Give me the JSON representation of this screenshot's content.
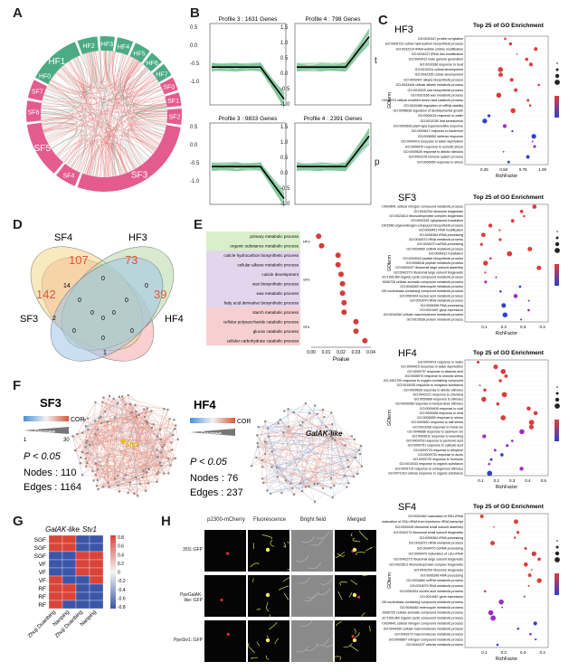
{
  "panels": {
    "A": "A",
    "B": "B",
    "C": "C",
    "D": "D",
    "E": "E",
    "F": "F",
    "G": "G",
    "H": "H"
  },
  "chord": {
    "groups": [
      {
        "label": "HF1",
        "color": "#4cab84",
        "a0": -62,
        "a1": -22
      },
      {
        "label": "HF2",
        "color": "#4cab84",
        "a0": -20,
        "a1": -5
      },
      {
        "label": "HF3",
        "color": "#4cab84",
        "a0": -3,
        "a1": 8
      },
      {
        "label": "HF4",
        "color": "#4cab84",
        "a0": 10,
        "a1": 22
      },
      {
        "label": "HF5",
        "color": "#4cab84",
        "a0": 24,
        "a1": 36
      },
      {
        "label": "HF6",
        "color": "#4cab84",
        "a0": 38,
        "a1": 48
      },
      {
        "label": "HF7",
        "color": "#4cab84",
        "a0": 50,
        "a1": 60
      },
      {
        "label": "SF0",
        "color": "#e45b8e",
        "a0": 62,
        "a1": 72
      },
      {
        "label": "SF1",
        "color": "#e45b8e",
        "a0": 74,
        "a1": 84
      },
      {
        "label": "SF2",
        "color": "#e45b8e",
        "a0": 86,
        "a1": 98
      },
      {
        "label": "SF3",
        "color": "#e45b8e",
        "a0": 100,
        "a1": 200
      },
      {
        "label": "SF4",
        "color": "#e45b8e",
        "a0": 202,
        "a1": 218
      },
      {
        "label": "SF5",
        "color": "#e45b8e",
        "a0": 220,
        "a1": 262
      },
      {
        "label": "SF6",
        "color": "#e45b8e",
        "a0": 264,
        "a1": 280
      },
      {
        "label": "SF7",
        "color": "#e45b8e",
        "a0": 282,
        "a1": 296
      },
      {
        "label": "HF0",
        "color": "#4cab84",
        "a0": 298,
        "a1": 308
      }
    ]
  },
  "profiles": [
    {
      "title": "Profile 3 : 1631 Genes",
      "pattern": "down_late",
      "side": ""
    },
    {
      "title": "Profile 4 : 798 Genes",
      "pattern": "up_late",
      "side": "t"
    },
    {
      "title": "Profile 3 : 9833 Genes",
      "pattern": "down_late",
      "side": ""
    },
    {
      "title": "Profile 4 : 2391 Genes",
      "pattern": "up_late",
      "side": "p"
    }
  ],
  "profile_axis": {
    "ticks": [
      "1.5",
      "1.0",
      "0.5",
      "0.0",
      "-0.5",
      "-1.0"
    ]
  },
  "venn": {
    "labels": {
      "sf4": "SF4",
      "hf3": "HF3",
      "sf3": "SF3",
      "hf4": "HF4"
    },
    "counts": {
      "sf4_only": "107",
      "hf3_only": "73",
      "sf3_only": "142",
      "hf4_only": "39",
      "a": "14",
      "b": "0",
      "c": "0",
      "d": "0",
      "e": "0",
      "f": "0",
      "g": "0",
      "h": "2",
      "i": "0",
      "j": "0",
      "k": "0",
      "l": "0",
      "m": "1"
    }
  },
  "bubbleE": {
    "terms": [
      "primary metabolic process",
      "organic substance metabolic process",
      "cuticle hydrocarbon biosynthetic process",
      "cellular alkane metabolic process",
      "cuticle development",
      "wax biosynthetic process",
      "wax metabolic process",
      "fatty acid derivative biosynthetic process",
      "starch metabolic process",
      "cellular polysaccharide catabolic process",
      "glucan catabolic process",
      "cellular carbohydrate catabolic process"
    ],
    "groups": [
      "HF3",
      "SF3",
      "SF4"
    ],
    "pvalues": [
      0.005,
      0.007,
      0.018,
      0.018,
      0.02,
      0.021,
      0.021,
      0.022,
      0.022,
      0.03,
      0.03,
      0.036
    ],
    "xlabel": "Pvalue",
    "xticks": [
      "0.00",
      "0.01",
      "0.02",
      "0.03",
      "0.04"
    ]
  },
  "networks": {
    "sf3": {
      "title": "SF3",
      "hub": "Stv1",
      "p": "P < 0.05",
      "nodes": "Nodes :  110",
      "edges": "Edges :  1164"
    },
    "hf4": {
      "title": "HF4",
      "hub": "GalAK-like",
      "p": "P < 0.05",
      "nodes": "Nodes :  76",
      "edges": "Edges :  237"
    },
    "legend": {
      "cor": "COR",
      "degree": "Degree",
      "d1": "1",
      "d30": "30"
    }
  },
  "heatmap": {
    "genes": [
      "GalAK-like",
      "Stv1"
    ],
    "rows": [
      "SGF",
      "SGF",
      "SGF",
      "VF",
      "VF",
      "VF",
      "RF",
      "RF",
      "RF"
    ],
    "cols": [
      "Zhuji Duanbing",
      "Nanping",
      "Zhuji Duanbing",
      "Nanping"
    ],
    "cells": [
      [
        1,
        1,
        0,
        0
      ],
      [
        1,
        1,
        0,
        0
      ],
      [
        0,
        0,
        1,
        1
      ],
      [
        0,
        0,
        1,
        1
      ],
      [
        0,
        0,
        1,
        1
      ],
      [
        1,
        0,
        0,
        1
      ],
      [
        1,
        1,
        0,
        0
      ],
      [
        1,
        1,
        0,
        0
      ],
      [
        1,
        0,
        0,
        0
      ]
    ],
    "scale": [
      "0.8",
      "0.6",
      "0.4",
      "0.2",
      "0",
      "-0.2",
      "-0.4",
      "-0.6",
      "-0.8"
    ]
  },
  "microscopy": {
    "cols": [
      "p2300-mCherry",
      "Fluorescence",
      "Bright field",
      "Merged"
    ],
    "rows": [
      "35S::GFP",
      "PpeGalAK-like::GFP",
      "PpeStv1::GFP"
    ]
  },
  "go": [
    {
      "title": "Top 25 of GO Enrichment",
      "name": "HF3",
      "xlabel": "RichFactor",
      "ylabel": "GOterm",
      "terms": [
        "GO:0032447 protein urmylation",
        "GO:0006723 cuticle hydrocarbon biosynthetic process",
        "GO:0032214 tRNA wobble uridine modification",
        "GO:0034227 tRNA thio-modification",
        "GO:0043412 male gamete generation",
        "GO:0010286 response to heat",
        "GO:0010224 cutical development",
        "GO:0042335 cuticle development",
        "GO:0043447 alkane biosynthetic process",
        "GO:0043446 cellular alkane metabolic process",
        "GO:0010025 wax biosynthetic process",
        "GO:0010166 wax metabolic process",
        "GO:0042219 cellular modified amino acid catabolic process",
        "GO:0043488 regulation of mRNA stability",
        "GO:0048638 regulation of developmental growth",
        "GO:0009415 response to water",
        "GO:0010150 leaf senescence",
        "GO:0009626 plant-type hypersensitive response",
        "GO:0009617 response to bacterium",
        "GO:0006952 defense response",
        "GO:0009414 response to water deprivation",
        "GO:0006970 response to osmotic stress",
        "GO:0009628 response to abiotic stimulus",
        "GO:0002376 immune system process",
        "GO:0006950 response to stress"
      ],
      "xticks": [
        "0.25",
        "0.50",
        "0.75",
        "1.00"
      ]
    },
    {
      "title": "Top 25 of GO Enrichment",
      "name": "SF3",
      "xlabel": "RichFactor",
      "ylabel": "GOterm",
      "terms": [
        "GO:0034641 cellular nitrogen compound metabolic process",
        "GO:0042254 ribosome biogenesis",
        "GO:0022613 ribonucleoprotein complex biogenesis",
        "GO:0002181 cytoplasmic translation",
        "GO:1901566 organonitrogen compound biosynthetic process",
        "GO:0009451 RNA modification",
        "GO:0006364 rRNA processing",
        "GO:0016072 rRNA metabolic process",
        "GO:0034470 ncRNA processing",
        "GO:0034660 ncRNA metabolic process",
        "GO:0006412 translation",
        "GO:0043043 peptide biosynthetic process",
        "GO:0006518 peptide metabolic process",
        "GO:0000027 ribosomal large subunit assembly",
        "GO:0042273 ribosomal large subunit biogenesis",
        "GO:1901360 organic cyclic compound metabolic process",
        "GO:0006725 cellular aromatic compound metabolic process",
        "GO:0046483 heterocycle metabolic process",
        "GO:0006139 nucleobase-containing compound metabolic process",
        "GO:0090304 nucleic acid metabolic process",
        "GO:0016070 RNA metabolic process",
        "GO:0006396 RNA processing",
        "GO:0010467 gene expression",
        "GO:0044260 cellular macromolecule metabolic process",
        "GO:0019538 protein metabolic process"
      ],
      "xticks": [
        "0.1",
        "0.2",
        "0.3",
        "0.4"
      ]
    },
    {
      "title": "Top 25 of GO Enrichment",
      "name": "HF4",
      "xlabel": "RichFactor",
      "ylabel": "GOterm",
      "terms": [
        "GO:0009414 response to water",
        "GO:0009415 response to water deprivation",
        "GO:0009737 response to abscisic acid",
        "GO:0006970 response to osmotic stress",
        "GO:1901700 response to oxygen-containing compound",
        "GO:0010035 response to inorganic substance",
        "GO:0009628 response to abiotic stimulus",
        "GO:0042221 response to chemical",
        "GO:0050896 response to stimulus",
        "GO:0009266 response to temperature stimulus",
        "GO:0009409 response to cold",
        "GO:0009408 response to heat",
        "GO:0006950 response to stress",
        "GO:0009651 response to salt stress",
        "GO:0010038 response to metal ion",
        "GO:0046686 response to cadmium ion",
        "GO:0009611 response to wounding",
        "GO:0009753 response to jasmonic acid",
        "GO:0009751 response to salicylic acid",
        "GO:0009723 response to ethylene",
        "GO:0009733 response to auxin",
        "GO:0009725 response to hormone",
        "GO:0010033 response to organic substance",
        "GO:0009719 response to endogenous stimulus",
        "GO:0071310 cellular response to organic substance"
      ],
      "xticks": [
        "0.1",
        "0.2",
        "0.3",
        "0.4",
        "0.5"
      ]
    },
    {
      "title": "Top 25 of GO Enrichment",
      "name": "SF4",
      "xlabel": "RichFactor",
      "ylabel": "GOterm",
      "terms": [
        "GO:0000462 maturation of SSU-rRNA",
        "GO:0030490 maturation of SSU-rRNA from tricistronic rRNA transcript",
        "GO:0000028 ribosomal small subunit assembly",
        "GO:0042274 ribosomal small subunit biogenesis",
        "GO:0006364 rRNA processing",
        "GO:0016072 rRNA metabolic process",
        "GO:0034470 ncRNA processing",
        "GO:0000470 maturation of LSU-rRNA",
        "GO:0042273 ribosomal large subunit biogenesis",
        "GO:0022613 ribonucleoprotein complex biogenesis",
        "GO:0042254 ribosome biogenesis",
        "GO:0006396 RNA processing",
        "GO:0034660 ncRNA metabolic process",
        "GO:0016070 RNA metabolic process",
        "GO:0090304 nucleic acid metabolic process",
        "GO:0010467 gene expression",
        "GO:0006139 nucleobase-containing compound metabolic process",
        "GO:0046483 heterocycle metabolic process",
        "GO:0006725 cellular aromatic compound metabolic process",
        "GO:1901360 organic cyclic compound metabolic process",
        "GO:0034641 cellular nitrogen compound metabolic process",
        "GO:0044260 cellular macromolecule metabolic process",
        "GO:0043170 macromolecule metabolic process",
        "GO:0006807 nitrogen compound metabolic process",
        "GO:0044237 cellular metabolic process"
      ],
      "xticks": [
        "0.1",
        "0.2",
        "0.3",
        "0.4"
      ]
    }
  ]
}
